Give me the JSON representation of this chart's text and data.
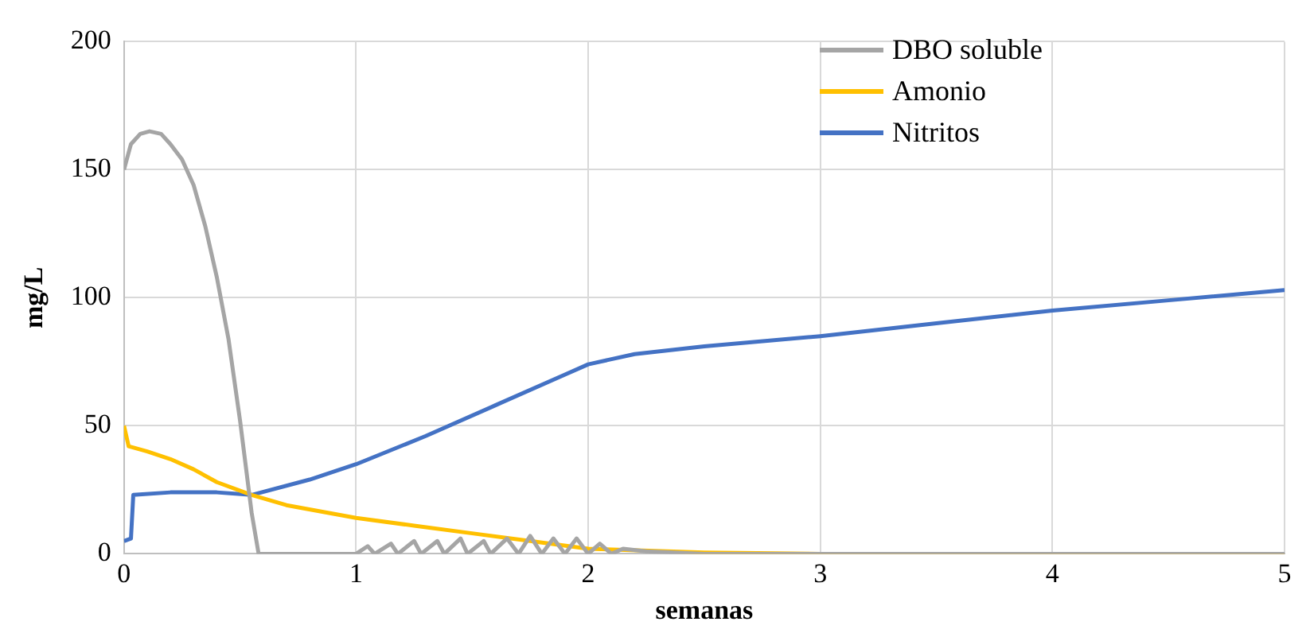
{
  "chart_data": {
    "type": "line",
    "xlabel": "semanas",
    "ylabel": "mg/L",
    "xlim": [
      0,
      5
    ],
    "xticks": [
      0,
      1,
      2,
      3,
      4,
      5
    ],
    "ylim": [
      0,
      200
    ],
    "yticks": [
      0,
      50,
      100,
      150,
      200
    ],
    "grid": true,
    "legend": "top right",
    "marker": "none",
    "line_style": "solid",
    "series": [
      {
        "name": "DBO soluble",
        "color": "#a5a5a5",
        "x": [
          0,
          0.03,
          0.07,
          0.11,
          0.16,
          0.2,
          0.25,
          0.3,
          0.35,
          0.4,
          0.45,
          0.5,
          0.55,
          0.58,
          0.8,
          1.0,
          1.05,
          1.08,
          1.15,
          1.18,
          1.25,
          1.28,
          1.35,
          1.38,
          1.45,
          1.48,
          1.55,
          1.58,
          1.65,
          1.7,
          1.75,
          1.8,
          1.85,
          1.9,
          1.95,
          2.0,
          2.05,
          2.1,
          2.15,
          2.25,
          2.5,
          3,
          5
        ],
        "values": [
          150,
          160,
          164,
          165,
          164,
          160,
          154,
          144,
          128,
          108,
          84,
          52,
          16,
          0,
          0,
          0,
          3,
          0,
          4,
          0,
          5,
          0,
          5,
          0,
          6,
          0,
          5,
          0,
          6,
          0,
          7,
          0,
          6,
          0,
          6,
          0,
          4,
          0,
          2,
          1,
          0,
          0,
          0
        ]
      },
      {
        "name": "Amonio",
        "color": "#ffc000",
        "x": [
          0,
          0.02,
          0.1,
          0.2,
          0.3,
          0.4,
          0.55,
          0.7,
          1.0,
          1.25,
          1.5,
          1.75,
          2.0,
          2.5,
          3,
          5
        ],
        "values": [
          50,
          42,
          40,
          37,
          33,
          28,
          23,
          19,
          14,
          11,
          8,
          5,
          2,
          0.5,
          0,
          0
        ]
      },
      {
        "name": "Nitritos",
        "color": "#4472c4",
        "x": [
          0,
          0.03,
          0.04,
          0.2,
          0.4,
          0.55,
          0.8,
          1.0,
          1.3,
          1.6,
          1.9,
          2.0,
          2.2,
          2.5,
          3,
          3.5,
          4,
          4.5,
          5
        ],
        "values": [
          5,
          6,
          23,
          24,
          24,
          23,
          29,
          35,
          46,
          58,
          70,
          74,
          78,
          81,
          85,
          90,
          95,
          99,
          103
        ]
      }
    ]
  }
}
